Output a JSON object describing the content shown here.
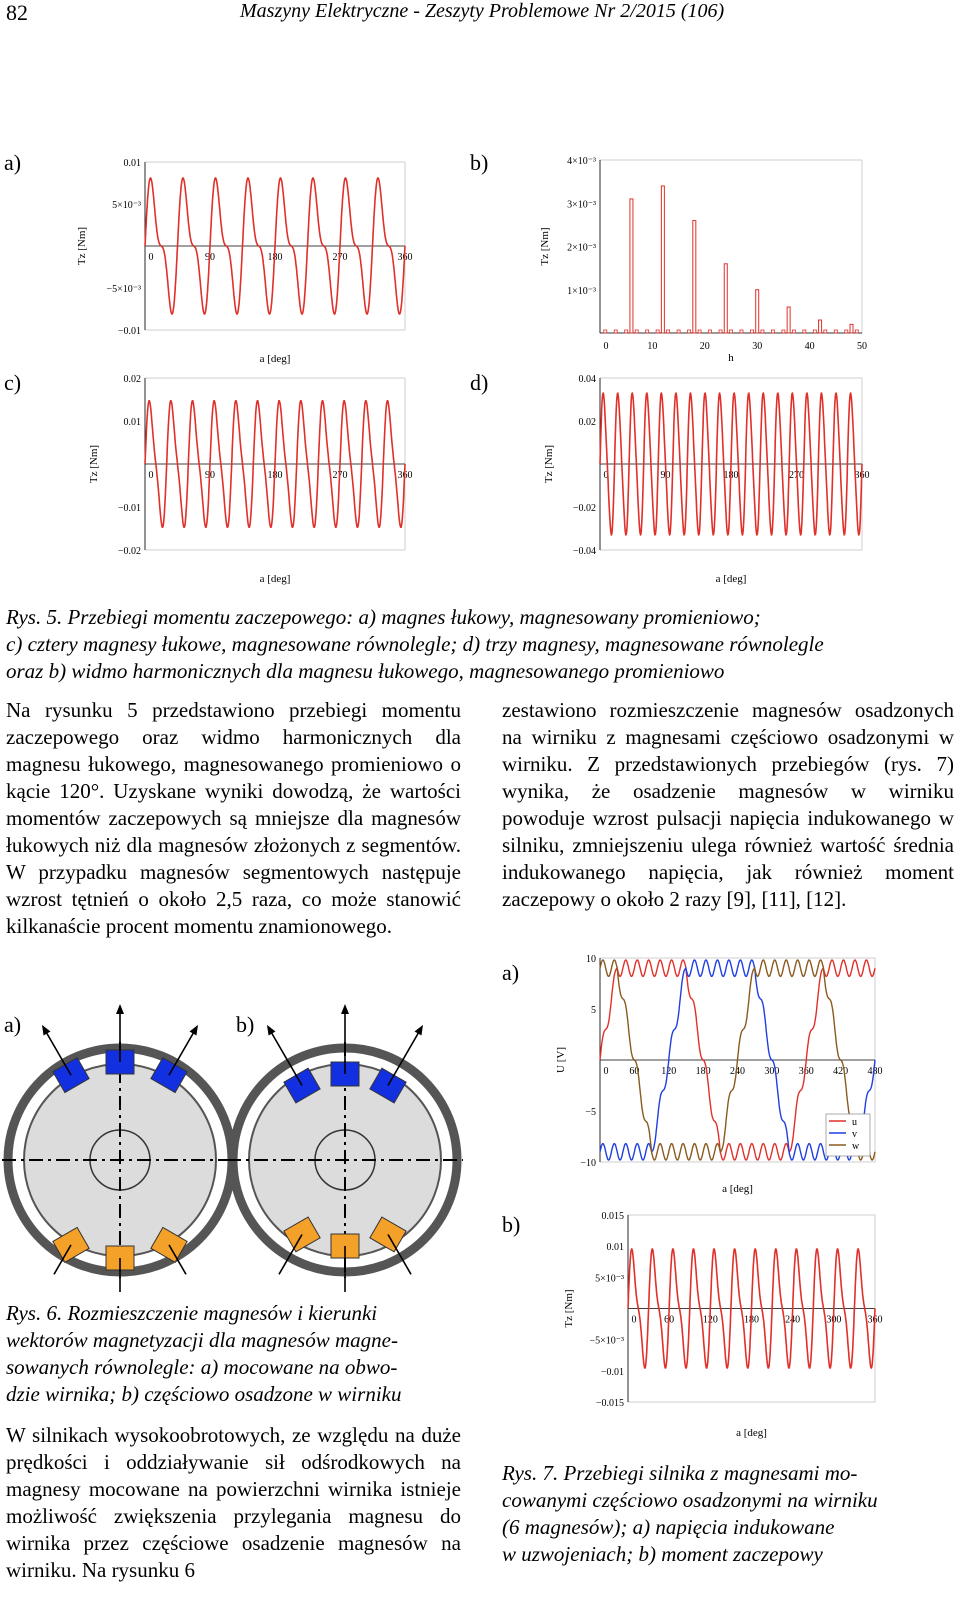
{
  "header": {
    "page_number": "82",
    "journal": "Maszyny Elektryczne - Zeszyty Problemowe Nr 2/2015 (106)"
  },
  "panel_labels": {
    "a": "a)",
    "b": "b)",
    "c": "c)",
    "d": "d)"
  },
  "fig5": {
    "caption_lines": [
      "Rys.  5.  Przebiegi  momentu  zaczepowego:  a)  magnes  łukowy,  magnesowany  promieniowo;",
      "c) cztery magnesy łukowe, magnesowane równolegle; d) trzy magnesy, magnesowane równolegle",
      "oraz b) widmo harmonicznych dla magnesu łukowego, magnesowanego promieniowo"
    ]
  },
  "body_left_1": "Na rysunku 5 przedstawiono przebiegi momentu zaczepowego oraz widmo harmonicznych dla magnesu łukowego, magnesowanego promieniowo o kącie 120°. Uzyskane wyniki dowodzą, że wartości momentów zaczepowych są mniejsze dla magnesów łukowych niż dla magnesów złożonych z segmentów. W przypadku magnesów segmentowych następuje wzrost tętnień o około 2,5 raza, co może stanowić kilkanaście procent momentu znamionowego.",
  "body_right_1": "zestawiono rozmieszczenie magnesów osadzonych na wirniku z magnesami częściowo osadzonymi w wirniku. Z przedstawionych przebiegów (rys. 7) wynika, że osadzenie magnesów w wirniku powoduje wzrost pulsacji napięcia indukowanego w silniku, zmniejszeniu ulega również wartość średnia indukowanego napięcia, jak również moment zaczepowy o około 2 razy [9], [11], [12].",
  "fig6": {
    "caption_lines": [
      "Rys.  6.  Rozmieszczenie  magnesów  i  kierunki",
      "wektorów  magnetyzacji  dla  magnesów  magne-",
      "sowanych  równolegle:  a)  mocowane  na  obwo-",
      "dzie wirnika; b) częściowo osadzone w wirniku"
    ]
  },
  "body_left_2": "W silnikach wysokoobrotowych, ze względu na duże prędkości i oddziaływanie sił odśrodkowych na magnesy mocowane na powierzchni wirnika istnieje możliwość zwiększenia przylegania magnesu do wirnika przez częściowe osadzenie magnesów na wirniku. Na rysunku 6",
  "fig7": {
    "caption_lines": [
      "Rys.  7.  Przebiegi  silnika  z  magnesami  mo-",
      "cowanymi  częściowo  osadzonymi  na  wirniku",
      "(6  magnesów);  a)  napięcia  indukowane",
      "w uzwojeniach; b) moment zaczepowy"
    ]
  },
  "colors": {
    "series_red": "#e0302a",
    "series_blue": "#1f3fe0",
    "series_brown": "#8a5a1e",
    "magnet_blue": "#1330e0",
    "magnet_orange": "#f4a12a"
  },
  "chart_data": [
    {
      "id": "fig5a",
      "type": "line",
      "xlabel": "a [deg]",
      "ylabel": "Tz [Nm]",
      "xticks": [
        "0",
        "90",
        "180",
        "270",
        "360"
      ],
      "yticks": [
        "0.01",
        "5×10⁻³",
        "−5×10⁻³",
        "−0.01"
      ],
      "xlim": [
        0,
        360
      ],
      "ylim": [
        -0.01,
        0.01
      ],
      "series": [
        {
          "values_desc": "periodic cogging torque, period 45 deg, amplitude ≈0.0085"
        }
      ]
    },
    {
      "id": "fig5b",
      "type": "bar",
      "xlabel": "h",
      "ylabel": "Tz [Nm]",
      "xticks": [
        "0",
        "10",
        "20",
        "30",
        "40",
        "50"
      ],
      "yticks": [
        "4×10⁻³",
        "3×10⁻³",
        "2×10⁻³",
        "1×10⁻³"
      ],
      "xlim": [
        0,
        50
      ],
      "ylim": [
        0,
        0.004
      ],
      "categories": [
        6,
        12,
        18,
        24,
        30,
        36,
        42,
        48
      ],
      "values": [
        0.0031,
        0.0034,
        0.0026,
        0.0016,
        0.001,
        0.0006,
        0.0003,
        0.0002
      ]
    },
    {
      "id": "fig5c",
      "type": "line",
      "xlabel": "a [deg]",
      "ylabel": "Tz [Nm]",
      "xticks": [
        "0",
        "90",
        "180",
        "270",
        "360"
      ],
      "yticks": [
        "0.02",
        "0.01",
        "−0.01",
        "−0.02"
      ],
      "xlim": [
        0,
        360
      ],
      "ylim": [
        -0.02,
        0.02
      ],
      "series": [
        {
          "values_desc": "periodic cogging torque, period 30 deg, amplitude ≈0.018"
        }
      ]
    },
    {
      "id": "fig5d",
      "type": "line",
      "xlabel": "a [deg]",
      "ylabel": "Tz [Nm]",
      "xticks": [
        "0",
        "90",
        "180",
        "270",
        "360"
      ],
      "yticks": [
        "0.04",
        "0.02",
        "−0.02",
        "−0.04"
      ],
      "xlim": [
        0,
        360
      ],
      "ylim": [
        -0.04,
        0.04
      ],
      "series": [
        {
          "values_desc": "periodic cogging torque, period 20 deg, amplitude ≈0.032"
        }
      ]
    },
    {
      "id": "fig7a",
      "type": "line",
      "xlabel": "a [deg]",
      "ylabel": "U [V]",
      "xticks": [
        "0",
        "60",
        "120",
        "180",
        "240",
        "300",
        "360",
        "420",
        "480"
      ],
      "yticks": [
        "10",
        "5",
        "−5",
        "−10"
      ],
      "xlim": [
        0,
        480
      ],
      "ylim": [
        -10,
        10
      ],
      "series": [
        {
          "name": "u"
        },
        {
          "name": "v"
        },
        {
          "name": "w"
        }
      ],
      "legend": "bottom-right"
    },
    {
      "id": "fig7b",
      "type": "line",
      "xlabel": "a [deg]",
      "ylabel": "Tz [Nm]",
      "xticks": [
        "0",
        "60",
        "120",
        "180",
        "240",
        "300",
        "360"
      ],
      "yticks": [
        "0.015",
        "0.01",
        "5×10⁻³",
        "−5×10⁻³",
        "−0.01",
        "−0.015"
      ],
      "xlim": [
        0,
        360
      ],
      "ylim": [
        -0.015,
        0.015
      ],
      "series": [
        {
          "values_desc": "periodic cogging torque, period 30 deg, amplitude ≈0.011"
        }
      ]
    }
  ]
}
